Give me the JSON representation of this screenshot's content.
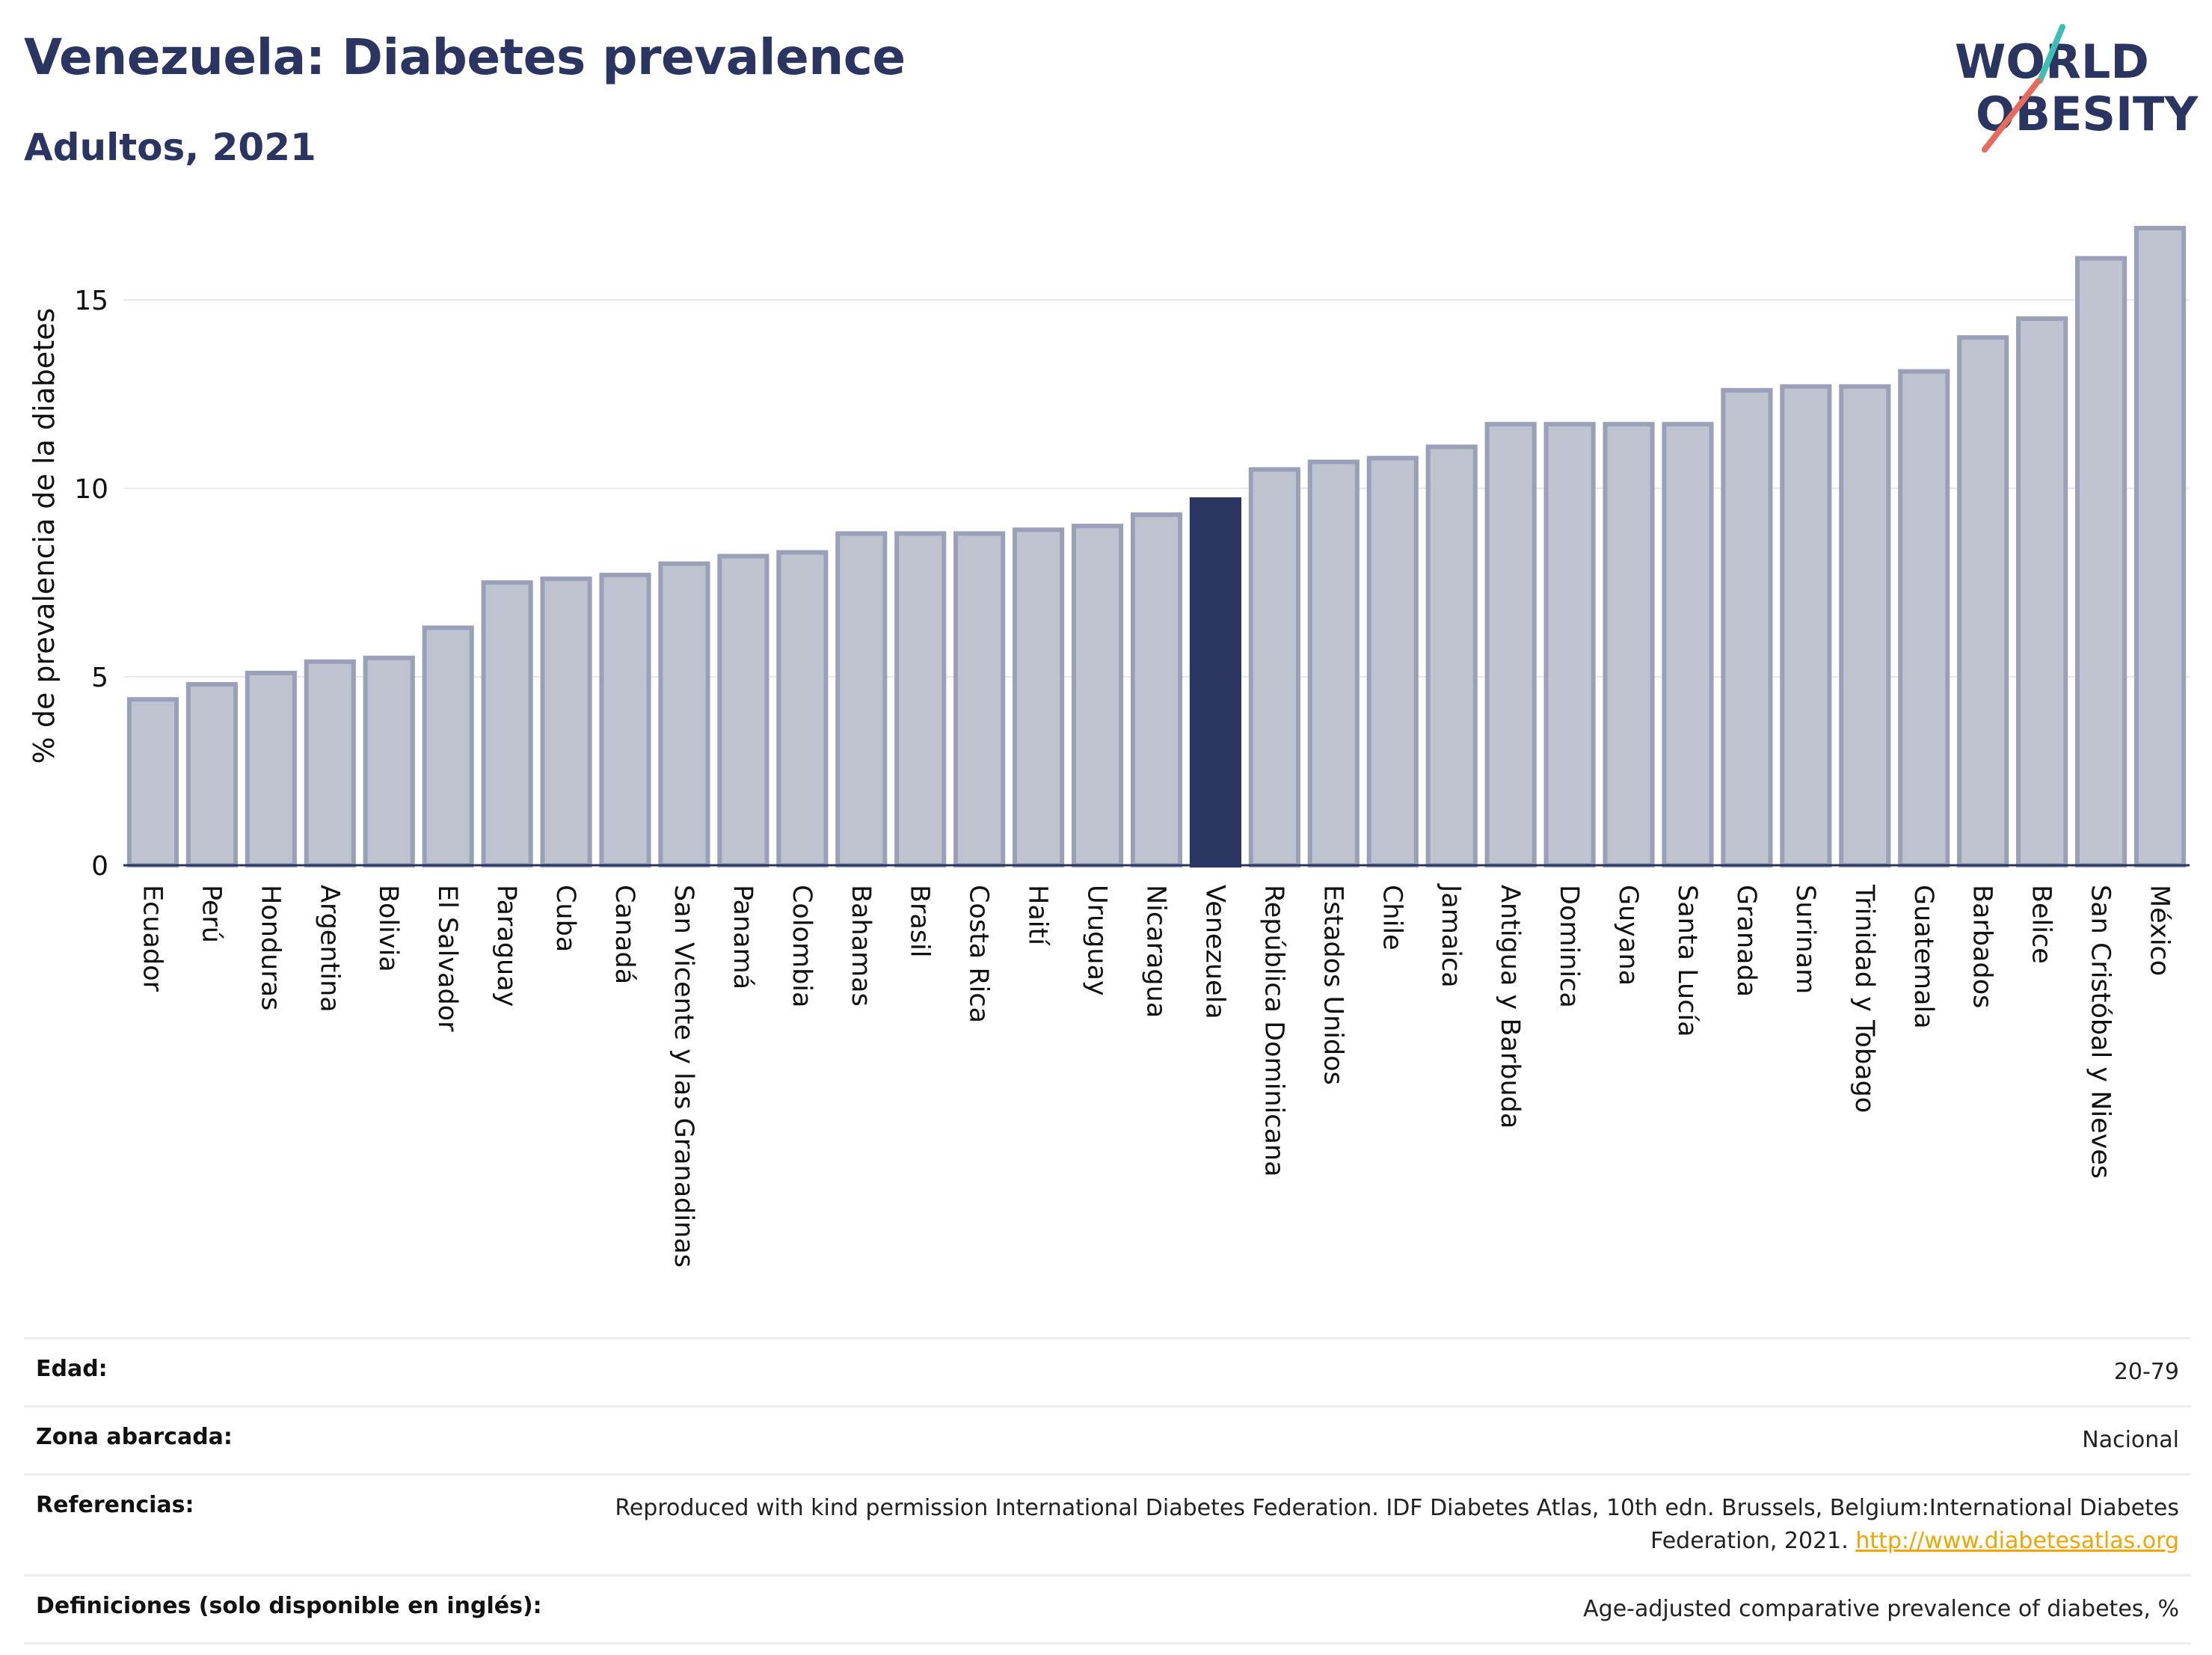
{
  "header": {
    "title": "Venezuela: Diabetes prevalence",
    "subtitle": "Adultos, 2021"
  },
  "logo": {
    "line1": "WORLD",
    "line2": "OBESITY",
    "accent_teal": "#3dbfb3",
    "accent_coral": "#e86a5c",
    "text_color": "#2b3561"
  },
  "chart_data": {
    "type": "bar",
    "title": "Venezuela: Diabetes prevalence",
    "subtitle": "Adultos, 2021",
    "xlabel": "",
    "ylabel": "% de prevalencia de la diabetes",
    "ylim": [
      0,
      17
    ],
    "yticks": [
      0,
      5,
      10,
      15
    ],
    "grid": true,
    "highlight": "Venezuela",
    "colors": {
      "bar": "#bfc3cf",
      "bar_border": "#9aa0b8",
      "highlight": "#2b3561",
      "grid": "#e6e8ef"
    },
    "categories": [
      "Ecuador",
      "Perú",
      "Honduras",
      "Argentina",
      "Bolivia",
      "El Salvador",
      "Paraguay",
      "Cuba",
      "Canadá",
      "San Vicente y las Granadinas",
      "Panamá",
      "Colombia",
      "Bahamas",
      "Brasil",
      "Costa Rica",
      "Haití",
      "Uruguay",
      "Nicaragua",
      "Venezuela",
      "República Dominicana",
      "Estados Unidos",
      "Chile",
      "Jamaica",
      "Antigua y Barbuda",
      "Dominica",
      "Guyana",
      "Santa Lucía",
      "Granada",
      "Surinam",
      "Trinidad y Tobago",
      "Guatemala",
      "Barbados",
      "Belice",
      "San Cristóbal y Nieves",
      "México"
    ],
    "values": [
      4.4,
      4.8,
      5.1,
      5.4,
      5.5,
      6.3,
      7.5,
      7.6,
      7.7,
      8.0,
      8.2,
      8.3,
      8.8,
      8.8,
      8.8,
      8.9,
      9.0,
      9.3,
      9.7,
      10.5,
      10.7,
      10.8,
      11.1,
      11.7,
      11.7,
      11.7,
      11.7,
      12.6,
      12.7,
      12.7,
      13.1,
      14.0,
      14.5,
      16.1,
      16.9
    ]
  },
  "meta_rows": [
    {
      "label": "Edad:",
      "value": "20-79"
    },
    {
      "label": "Zona abarcada:",
      "value": "Nacional"
    },
    {
      "label": "Referencias:",
      "value": "Reproduced with kind permission International Diabetes Federation.  IDF Diabetes Atlas, 10th edn. Brussels, Belgium:International Diabetes Federation, 2021.",
      "link": "http://www.diabetesatlas.org"
    },
    {
      "label": "Definiciones (solo disponible en inglés):",
      "value": "Age-adjusted comparative prevalence of diabetes, %"
    }
  ]
}
